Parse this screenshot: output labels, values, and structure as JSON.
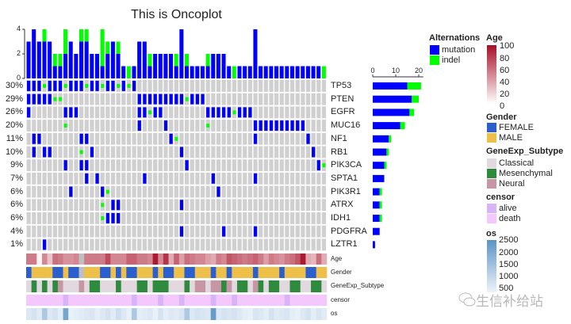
{
  "title": "This is Oncoplot",
  "colors": {
    "mutation": "#0000ff",
    "indel": "#00ff00",
    "empty": "#d0d0d0",
    "na": "#bfbfbf"
  },
  "chart_data": {
    "type": "oncoplot",
    "title": "This is Oncoplot",
    "n_samples": 57,
    "top_bar": {
      "ylim": [
        0,
        4
      ],
      "yticks": [
        "0",
        "2",
        "4"
      ],
      "mutation": [
        3,
        4,
        3,
        3,
        3,
        1,
        1,
        2,
        3,
        2,
        3,
        3,
        2,
        2,
        1,
        2,
        3,
        2,
        1,
        0,
        1,
        3,
        3,
        1,
        2,
        2,
        2,
        2,
        1,
        4,
        1,
        1,
        1,
        1,
        1,
        2,
        2,
        2,
        1,
        0,
        1,
        1,
        1,
        4,
        1,
        1,
        1,
        1,
        1,
        1,
        1,
        1,
        1,
        1,
        1,
        1,
        0
      ],
      "indel": [
        0,
        0,
        0,
        1,
        0,
        1,
        1,
        2,
        0,
        0,
        1,
        1,
        0,
        0,
        3,
        1,
        0,
        1,
        0,
        1,
        0,
        0,
        0,
        1,
        0,
        0,
        0,
        0,
        1,
        0,
        1,
        0,
        0,
        0,
        1,
        0,
        0,
        0,
        0,
        1,
        0,
        0,
        0,
        0,
        0,
        0,
        0,
        0,
        0,
        0,
        0,
        0,
        0,
        0,
        0,
        0,
        1
      ]
    },
    "right_bar": {
      "xticks": [
        "0",
        "10",
        "20"
      ],
      "xlim": [
        0,
        22
      ]
    },
    "genes": [
      {
        "name": "TP53",
        "pct": "30%",
        "mutation": [
          0,
          1,
          2,
          4,
          5,
          6,
          8,
          9,
          10,
          12,
          13,
          15,
          16,
          18,
          20
        ],
        "indel": [
          3,
          7,
          11,
          14,
          17,
          19
        ]
      },
      {
        "name": "PTEN",
        "pct": "29%",
        "mutation": [
          0,
          1,
          2,
          3,
          4,
          21,
          22,
          23,
          24,
          25,
          26,
          27,
          28,
          29,
          31,
          32,
          33
        ],
        "indel": [
          5,
          6,
          30
        ]
      },
      {
        "name": "EGFR",
        "pct": "26%",
        "mutation": [
          0,
          7,
          8,
          9,
          21,
          22,
          24,
          25,
          34,
          35,
          36,
          37,
          38,
          40,
          41,
          42
        ],
        "indel": [
          23,
          39
        ]
      },
      {
        "name": "MUC16",
        "pct": "20%",
        "mutation": [
          21,
          26,
          43,
          44,
          45,
          46,
          47,
          48,
          49,
          50,
          51,
          52
        ],
        "indel": [
          7,
          34
        ]
      },
      {
        "name": "NF1",
        "pct": "11%",
        "mutation": [
          1,
          2,
          10,
          11,
          27,
          43,
          53
        ],
        "indel": [
          28
        ]
      },
      {
        "name": "RB1",
        "pct": "10%",
        "mutation": [
          1,
          3,
          4,
          12,
          29,
          54
        ],
        "indel": [
          10
        ]
      },
      {
        "name": "PIK3CA",
        "pct": "9%",
        "mutation": [
          7,
          10,
          11,
          30,
          55
        ],
        "indel": [
          56
        ]
      },
      {
        "name": "SPTA1",
        "pct": "7%",
        "mutation": [
          11,
          13,
          22,
          35,
          43
        ],
        "indel": []
      },
      {
        "name": "PIK3R1",
        "pct": "6%",
        "mutation": [
          8,
          14,
          36
        ],
        "indel": [
          15
        ]
      },
      {
        "name": "ATRX",
        "pct": "6%",
        "mutation": [
          16,
          17,
          29
        ],
        "indel": [
          14
        ]
      },
      {
        "name": "IDH1",
        "pct": "6%",
        "mutation": [
          15,
          16,
          17
        ],
        "indel": [
          14
        ]
      },
      {
        "name": "PDGFRA",
        "pct": "4%",
        "mutation": [
          29,
          37,
          43
        ],
        "indel": []
      },
      {
        "name": "LZTR1",
        "pct": "1%",
        "mutation": [
          3
        ],
        "indel": []
      }
    ],
    "annotations": {
      "labels": [
        "Age",
        "Gender",
        "GeneExp_Subtype",
        "censor",
        "os"
      ],
      "age": [
        55,
        55,
        5,
        50,
        25,
        60,
        55,
        45,
        45,
        50,
        null,
        55,
        55,
        55,
        55,
        75,
        50,
        50,
        50,
        65,
        65,
        55,
        55,
        50,
        95,
        50,
        85,
        35,
        65,
        40,
        60,
        55,
        50,
        50,
        40,
        35,
        55,
        50,
        70,
        65,
        60,
        55,
        60,
        65,
        55,
        40,
        55,
        50,
        45,
        55,
        60,
        70,
        95,
        35,
        30,
        60,
        35
      ],
      "gender": [
        "F",
        "M",
        "M",
        "M",
        "M",
        "F",
        "F",
        "M",
        "F",
        "F",
        null,
        "M",
        "M",
        "M",
        "F",
        "F",
        "M",
        "F",
        "M",
        "F",
        "F",
        "M",
        "M",
        "M",
        "F",
        "M",
        "F",
        "F",
        "M",
        "M",
        "F",
        "F",
        "M",
        "M",
        "M",
        "F",
        "M",
        "M",
        "F",
        "M",
        "M",
        "M",
        "M",
        "F",
        "M",
        "M",
        "M",
        "M",
        "F",
        "M",
        "M",
        "M",
        "M",
        "F",
        "F",
        "M",
        "M"
      ],
      "subtype": [
        "C",
        "M",
        "C",
        "M",
        "C",
        "M",
        "N",
        "C",
        "C",
        "C",
        "N",
        "C",
        "M",
        "M",
        "C",
        "C",
        "C",
        "M",
        "C",
        "C",
        "C",
        "M",
        "M",
        "C",
        "M",
        "M",
        "M",
        "C",
        "C",
        "C",
        "M",
        "C",
        "N",
        "N",
        "C",
        "N",
        "N",
        "M",
        "N",
        "C",
        "M",
        "M",
        "C",
        "N",
        "M",
        "C",
        "M",
        "M",
        "C",
        "C",
        "M",
        "M",
        "C",
        "C",
        "M",
        "M",
        "C"
      ],
      "censor_alive": [
        7,
        20,
        25,
        29,
        35,
        39,
        49
      ],
      "os": [
        700,
        800,
        650,
        1300,
        700,
        800,
        600,
        2000,
        550,
        600,
        650,
        700,
        750,
        600,
        700,
        800,
        650,
        900,
        700,
        550,
        1300,
        600,
        650,
        700,
        550,
        800,
        600,
        700,
        650,
        750,
        1300,
        700,
        800,
        750,
        700,
        2200,
        700,
        800,
        750,
        800,
        700,
        600,
        550,
        750,
        700,
        600,
        800,
        650,
        700,
        750,
        600,
        550,
        700,
        800,
        600,
        750,
        650
      ]
    },
    "legends": {
      "alterations": {
        "title": "Alternations",
        "items": [
          {
            "label": "mutation",
            "color": "#0000ff"
          },
          {
            "label": "indel",
            "color": "#00ff00"
          }
        ]
      },
      "age": {
        "title": "Age",
        "ticks": [
          "100",
          "80",
          "60",
          "40",
          "20",
          "0"
        ],
        "range": [
          0,
          100
        ],
        "colors": [
          "#ffffff",
          "#a50f26"
        ]
      },
      "gender": {
        "title": "Gender",
        "items": [
          {
            "label": "FEMALE",
            "color": "#2b5fcf"
          },
          {
            "label": "MALE",
            "color": "#eec04a"
          }
        ]
      },
      "subtype": {
        "title": "GeneExp_Subtype",
        "items": [
          {
            "label": "Classical",
            "color": "#e2d8e0"
          },
          {
            "label": "Mesenchymal",
            "color": "#2e8b3e"
          },
          {
            "label": "Neural",
            "color": "#c796a5"
          }
        ]
      },
      "censor": {
        "title": "censor",
        "items": [
          {
            "label": "alive",
            "color": "#d9b3f7"
          },
          {
            "label": "death",
            "color": "#f4c8fc"
          }
        ]
      },
      "os": {
        "title": "os",
        "ticks": [
          "2500",
          "2000",
          "1500",
          "1000",
          "500"
        ],
        "range": [
          500,
          2500
        ],
        "colors": [
          "#e8eff8",
          "#5b93c4"
        ]
      }
    }
  },
  "watermark": "生信补给站"
}
